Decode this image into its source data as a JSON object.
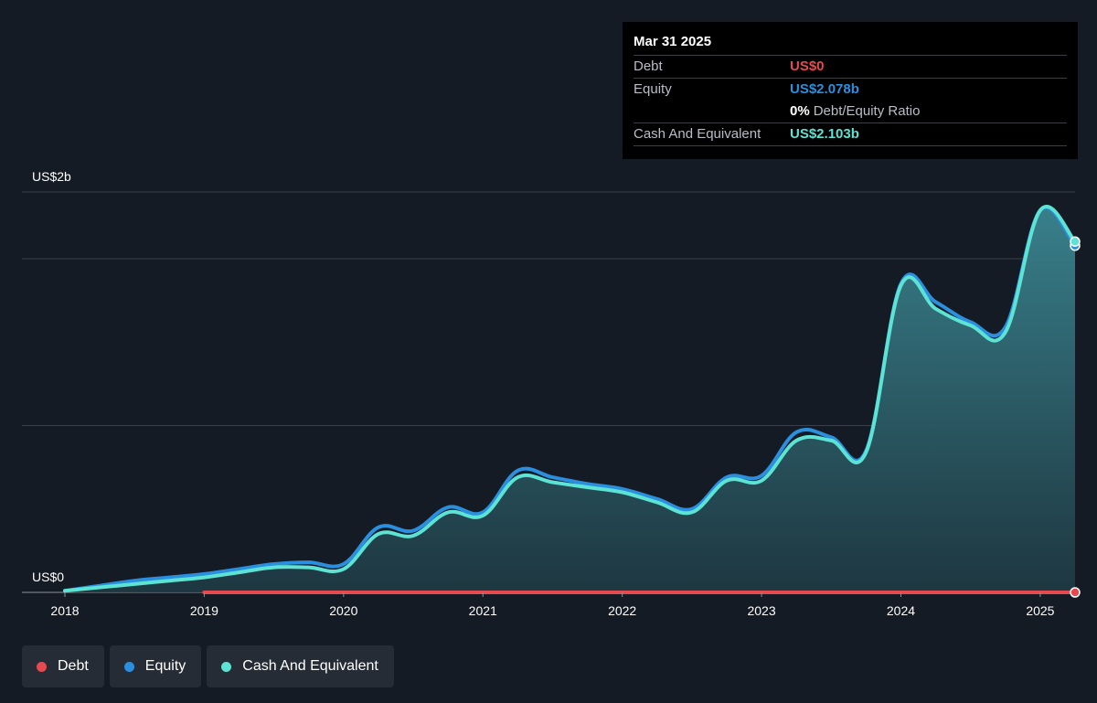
{
  "chart_data": {
    "type": "area",
    "y_axis_labels": {
      "top": "US$2b",
      "bottom": "US$0"
    },
    "ylim": [
      0,
      2.4
    ],
    "xlim": [
      2018.0,
      2025.25
    ],
    "x_ticks": [
      "2018",
      "2019",
      "2020",
      "2021",
      "2022",
      "2023",
      "2024",
      "2025"
    ],
    "gridlines": [
      0,
      1,
      2,
      2.4
    ],
    "series": [
      {
        "name": "Debt",
        "color": "#e64a4f",
        "fill": false,
        "x": [
          2019.0,
          2025.25
        ],
        "y": [
          0,
          0
        ]
      },
      {
        "name": "Equity",
        "color": "#2b8fe0",
        "fill": false,
        "x": [
          2018.0,
          2018.25,
          2018.5,
          2018.75,
          2019.0,
          2019.25,
          2019.5,
          2019.75,
          2020.0,
          2020.25,
          2020.5,
          2020.75,
          2021.0,
          2021.25,
          2021.5,
          2021.75,
          2022.0,
          2022.25,
          2022.5,
          2022.75,
          2023.0,
          2023.25,
          2023.5,
          2023.75,
          2024.0,
          2024.25,
          2024.5,
          2024.75,
          2025.0,
          2025.25
        ],
        "y": [
          0.01,
          0.04,
          0.07,
          0.09,
          0.11,
          0.14,
          0.17,
          0.18,
          0.17,
          0.39,
          0.37,
          0.51,
          0.48,
          0.73,
          0.69,
          0.65,
          0.62,
          0.56,
          0.5,
          0.69,
          0.7,
          0.96,
          0.93,
          0.85,
          1.85,
          1.74,
          1.62,
          1.59,
          2.29,
          2.078
        ]
      },
      {
        "name": "Cash And Equivalent",
        "color": "#5ce3d3",
        "fill": true,
        "x": [
          2018.0,
          2018.25,
          2018.5,
          2018.75,
          2019.0,
          2019.25,
          2019.5,
          2019.75,
          2020.0,
          2020.25,
          2020.5,
          2020.75,
          2021.0,
          2021.25,
          2021.5,
          2021.75,
          2022.0,
          2022.25,
          2022.5,
          2022.75,
          2023.0,
          2023.25,
          2023.5,
          2023.75,
          2024.0,
          2024.25,
          2024.5,
          2024.75,
          2025.0,
          2025.25
        ],
        "y": [
          0.01,
          0.03,
          0.05,
          0.07,
          0.09,
          0.12,
          0.15,
          0.15,
          0.14,
          0.35,
          0.34,
          0.48,
          0.46,
          0.69,
          0.66,
          0.63,
          0.6,
          0.54,
          0.48,
          0.67,
          0.67,
          0.91,
          0.91,
          0.84,
          1.84,
          1.7,
          1.6,
          1.56,
          2.29,
          2.103
        ]
      }
    ]
  },
  "tooltip": {
    "date": "Mar 31 2025",
    "debt_label": "Debt",
    "debt_value": "US$0",
    "equity_label": "Equity",
    "equity_value": "US$2.078b",
    "ratio_value": "0%",
    "ratio_label": "Debt/Equity Ratio",
    "cash_label": "Cash And Equivalent",
    "cash_value": "US$2.103b",
    "colors": {
      "debt": "#e64a4f",
      "equity": "#2b8fe0",
      "cash": "#5ce3d3"
    }
  },
  "legend": [
    {
      "label": "Debt",
      "color": "#e64a4f"
    },
    {
      "label": "Equity",
      "color": "#2b8fe0"
    },
    {
      "label": "Cash And Equivalent",
      "color": "#5ce3d3"
    }
  ]
}
